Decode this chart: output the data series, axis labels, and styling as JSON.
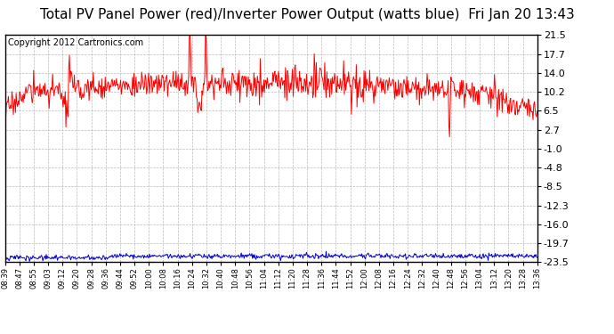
{
  "title": "Total PV Panel Power (red)/Inverter Power Output (watts blue)  Fri Jan 20 13:43",
  "copyright": "Copyright 2012 Cartronics.com",
  "yticks": [
    21.5,
    17.7,
    14.0,
    10.2,
    6.5,
    2.7,
    -1.0,
    -4.8,
    -8.5,
    -12.3,
    -16.0,
    -19.7,
    -23.5
  ],
  "ytick_labels": [
    "21.5",
    "17.7",
    "14.0",
    "10.2",
    "6.5",
    "2.7",
    "-1.0",
    "-4.8",
    "-8.5",
    "-12.3",
    "-16.0",
    "-19.7",
    "-23.5"
  ],
  "ymin": -23.5,
  "ymax": 21.5,
  "x_labels": [
    "08:39",
    "08:47",
    "08:55",
    "09:03",
    "09:12",
    "09:20",
    "09:28",
    "09:36",
    "09:44",
    "09:52",
    "10:00",
    "10:08",
    "10:16",
    "10:24",
    "10:32",
    "10:40",
    "10:48",
    "10:56",
    "11:04",
    "11:12",
    "11:20",
    "11:28",
    "11:36",
    "11:44",
    "11:52",
    "12:00",
    "12:08",
    "12:16",
    "12:24",
    "12:32",
    "12:40",
    "12:48",
    "12:56",
    "13:04",
    "13:12",
    "13:20",
    "13:28",
    "13:36"
  ],
  "background_color": "#ffffff",
  "grid_color": "#aaaaaa",
  "red_line_color": "#ff0000",
  "blue_line_color": "#0000cc",
  "title_fontsize": 11,
  "copyright_fontsize": 7,
  "ytick_fontsize": 8,
  "xtick_fontsize": 6
}
